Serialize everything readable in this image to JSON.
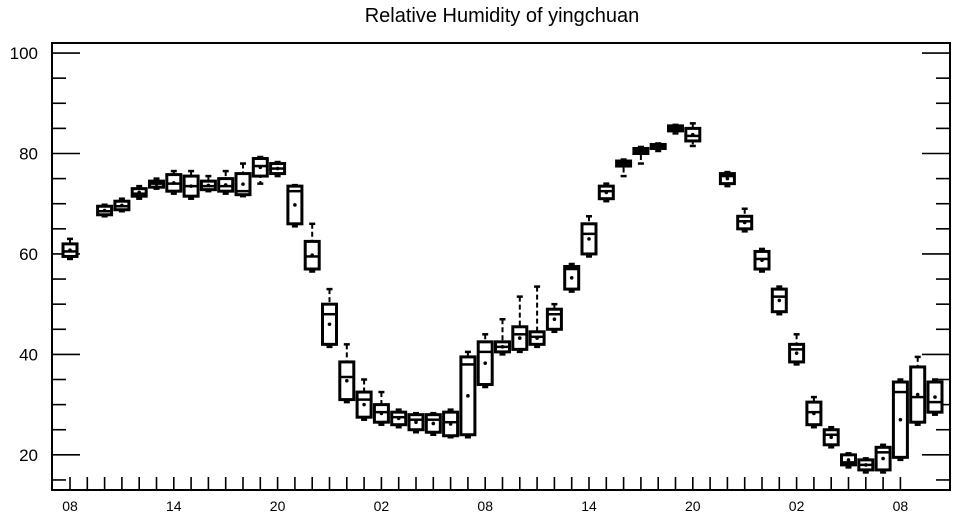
{
  "chart_data": {
    "type": "box",
    "title": "Relative Humidity of yingchuan",
    "xlabel": "",
    "ylabel": "",
    "ylim": [
      13,
      102
    ],
    "grid": false,
    "legend": "none",
    "yticks": [
      20,
      40,
      60,
      80,
      100
    ],
    "xtick_labels": [
      "08",
      "14",
      "20",
      "02",
      "08",
      "14",
      "20",
      "02",
      "08"
    ],
    "hours_per_label": 6,
    "boxes": [
      {
        "hour": 0,
        "whislo": 59.0,
        "q1": 59.5,
        "med": 60.5,
        "q3": 62.0,
        "whishi": 63.0
      },
      {
        "hour": 2,
        "whislo": 67.5,
        "q1": 67.8,
        "med": 68.5,
        "q3": 69.5,
        "whishi": 69.8
      },
      {
        "hour": 3,
        "whislo": 68.5,
        "q1": 68.8,
        "med": 69.5,
        "q3": 70.5,
        "whishi": 71.0
      },
      {
        "hour": 4,
        "whislo": 71.0,
        "q1": 71.5,
        "med": 72.0,
        "q3": 73.0,
        "whishi": 73.5
      },
      {
        "hour": 5,
        "whislo": 73.0,
        "q1": 73.3,
        "med": 74.0,
        "q3": 74.5,
        "whishi": 75.0
      },
      {
        "hour": 6,
        "whislo": 72.0,
        "q1": 72.5,
        "med": 74.0,
        "q3": 75.8,
        "whishi": 76.5
      },
      {
        "hour": 7,
        "whislo": 71.0,
        "q1": 71.5,
        "med": 73.5,
        "q3": 75.5,
        "whishi": 76.5
      },
      {
        "hour": 8,
        "whislo": 72.5,
        "q1": 72.8,
        "med": 73.5,
        "q3": 74.5,
        "whishi": 75.5
      },
      {
        "hour": 9,
        "whislo": 72.0,
        "q1": 72.5,
        "med": 73.5,
        "q3": 75.0,
        "whishi": 76.5
      },
      {
        "hour": 10,
        "whislo": 71.5,
        "q1": 71.8,
        "med": 72.5,
        "q3": 76.0,
        "whishi": 78.0
      },
      {
        "hour": 11,
        "whislo": 74.0,
        "q1": 75.5,
        "med": 77.5,
        "q3": 79.0,
        "whishi": 79.3
      },
      {
        "hour": 12,
        "whislo": 75.5,
        "q1": 76.0,
        "med": 77.0,
        "q3": 78.0,
        "whishi": 78.3
      },
      {
        "hour": 13,
        "whislo": 65.5,
        "q1": 66.0,
        "med": 72.5,
        "q3": 73.5,
        "whishi": 73.7
      },
      {
        "hour": 14,
        "whislo": 56.5,
        "q1": 57.0,
        "med": 59.5,
        "q3": 62.5,
        "whishi": 66.0
      },
      {
        "hour": 15,
        "whislo": 41.5,
        "q1": 42.0,
        "med": 48.0,
        "q3": 50.0,
        "whishi": 53.0
      },
      {
        "hour": 16,
        "whislo": 30.5,
        "q1": 31.0,
        "med": 35.5,
        "q3": 38.5,
        "whishi": 42.0
      },
      {
        "hour": 17,
        "whislo": 27.0,
        "q1": 27.5,
        "med": 31.0,
        "q3": 32.5,
        "whishi": 35.0
      },
      {
        "hour": 18,
        "whislo": 26.0,
        "q1": 26.5,
        "med": 28.5,
        "q3": 30.0,
        "whishi": 32.5
      },
      {
        "hour": 19,
        "whislo": 25.5,
        "q1": 26.0,
        "med": 27.5,
        "q3": 28.5,
        "whishi": 29.0
      },
      {
        "hour": 20,
        "whislo": 24.5,
        "q1": 25.0,
        "med": 27.0,
        "q3": 28.0,
        "whishi": 28.3
      },
      {
        "hour": 21,
        "whislo": 24.0,
        "q1": 24.5,
        "med": 27.0,
        "q3": 28.0,
        "whishi": 28.3
      },
      {
        "hour": 22,
        "whislo": 23.5,
        "q1": 23.8,
        "med": 26.5,
        "q3": 28.5,
        "whishi": 29.0
      },
      {
        "hour": 23,
        "whislo": 23.5,
        "q1": 24.0,
        "med": 38.0,
        "q3": 39.5,
        "whishi": 40.5
      },
      {
        "hour": 24,
        "whislo": 33.5,
        "q1": 34.0,
        "med": 40.5,
        "q3": 42.5,
        "whishi": 44.0
      },
      {
        "hour": 25,
        "whislo": 40.0,
        "q1": 40.5,
        "med": 41.5,
        "q3": 42.5,
        "whishi": 47.0
      },
      {
        "hour": 26,
        "whislo": 40.5,
        "q1": 41.0,
        "med": 44.0,
        "q3": 45.5,
        "whishi": 51.5
      },
      {
        "hour": 27,
        "whislo": 41.5,
        "q1": 42.0,
        "med": 43.5,
        "q3": 44.5,
        "whishi": 53.5
      },
      {
        "hour": 28,
        "whislo": 44.5,
        "q1": 45.0,
        "med": 48.0,
        "q3": 49.0,
        "whishi": 50.0
      },
      {
        "hour": 29,
        "whislo": 52.5,
        "q1": 53.0,
        "med": 57.0,
        "q3": 57.5,
        "whishi": 58.0
      },
      {
        "hour": 30,
        "whislo": 59.5,
        "q1": 60.0,
        "med": 64.0,
        "q3": 66.0,
        "whishi": 67.5
      },
      {
        "hour": 31,
        "whislo": 70.5,
        "q1": 71.0,
        "med": 72.5,
        "q3": 73.5,
        "whishi": 74.0
      },
      {
        "hour": 32,
        "whislo": 75.5,
        "q1": 77.5,
        "med": 78.0,
        "q3": 78.5,
        "whishi": 78.8
      },
      {
        "hour": 33,
        "whislo": 78.0,
        "q1": 80.0,
        "med": 80.5,
        "q3": 81.0,
        "whishi": 81.3
      },
      {
        "hour": 34,
        "whislo": 80.5,
        "q1": 81.0,
        "med": 81.5,
        "q3": 81.8,
        "whishi": 82.0
      },
      {
        "hour": 35,
        "whislo": 84.0,
        "q1": 84.5,
        "med": 85.0,
        "q3": 85.5,
        "whishi": 85.7
      },
      {
        "hour": 36,
        "whislo": 81.5,
        "q1": 82.5,
        "med": 83.5,
        "q3": 85.0,
        "whishi": 86.0
      },
      {
        "hour": 38,
        "whislo": 73.5,
        "q1": 74.0,
        "med": 75.5,
        "q3": 76.0,
        "whishi": 76.3
      },
      {
        "hour": 39,
        "whislo": 64.5,
        "q1": 65.0,
        "med": 66.5,
        "q3": 67.5,
        "whishi": 69.0
      },
      {
        "hour": 40,
        "whislo": 56.5,
        "q1": 57.0,
        "med": 59.0,
        "q3": 60.5,
        "whishi": 61.0
      },
      {
        "hour": 41,
        "whislo": 48.0,
        "q1": 48.5,
        "med": 51.5,
        "q3": 53.0,
        "whishi": 53.5
      },
      {
        "hour": 42,
        "whislo": 38.0,
        "q1": 38.5,
        "med": 41.0,
        "q3": 42.0,
        "whishi": 44.0
      },
      {
        "hour": 43,
        "whislo": 25.5,
        "q1": 26.0,
        "med": 28.5,
        "q3": 30.5,
        "whishi": 31.5
      },
      {
        "hour": 44,
        "whislo": 21.5,
        "q1": 22.0,
        "med": 24.0,
        "q3": 25.0,
        "whishi": 25.5
      },
      {
        "hour": 45,
        "whislo": 17.5,
        "q1": 18.0,
        "med": 18.5,
        "q3": 20.0,
        "whishi": 20.3
      },
      {
        "hour": 46,
        "whislo": 16.5,
        "q1": 17.0,
        "med": 18.0,
        "q3": 19.0,
        "whishi": 19.3
      },
      {
        "hour": 47,
        "whislo": 16.5,
        "q1": 17.0,
        "med": 20.5,
        "q3": 21.5,
        "whishi": 22.0
      },
      {
        "hour": 48,
        "whislo": 19.0,
        "q1": 19.5,
        "med": 32.5,
        "q3": 34.5,
        "whishi": 35.0
      },
      {
        "hour": 49,
        "whislo": 26.0,
        "q1": 26.5,
        "med": 31.5,
        "q3": 37.5,
        "whishi": 39.5
      },
      {
        "hour": 50,
        "whislo": 28.0,
        "q1": 28.5,
        "med": 30.5,
        "q3": 34.5,
        "whishi": 35.0
      }
    ]
  }
}
